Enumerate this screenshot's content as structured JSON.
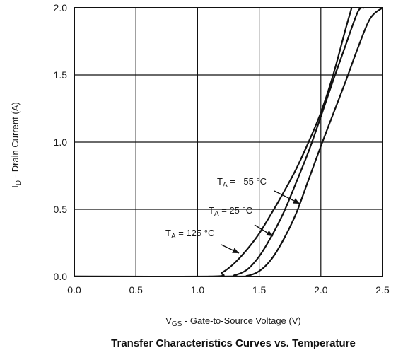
{
  "chart_data": {
    "type": "line",
    "title": "Transfer Characteristics Curves vs. Temperature",
    "xlabel": {
      "main": "V",
      "sub": "GS",
      "rest": " - Gate-to-Source Voltage (V)"
    },
    "ylabel": {
      "main": "I",
      "sub": "D",
      "rest": " - Drain Current (A)"
    },
    "xlim": [
      0.0,
      2.5
    ],
    "ylim": [
      0.0,
      2.0
    ],
    "xticks": [
      "0.0",
      "0.5",
      "1.0",
      "1.5",
      "2.0",
      "2.5"
    ],
    "yticks": [
      "0.0",
      "0.5",
      "1.0",
      "1.5",
      "2.0"
    ],
    "grid": true,
    "series": [
      {
        "name": {
          "main": "T",
          "sub": "A",
          "rest": " = - 55 °C"
        },
        "x": [
          0.0,
          1.3,
          1.4,
          1.5,
          1.6,
          1.7,
          1.8,
          1.9,
          2.0,
          2.1,
          2.2,
          2.3,
          2.4,
          2.5
        ],
        "y": [
          0.0,
          0.0,
          0.005,
          0.04,
          0.13,
          0.28,
          0.47,
          0.72,
          0.97,
          1.21,
          1.45,
          1.7,
          1.92,
          2.0
        ]
      },
      {
        "name": {
          "main": "T",
          "sub": "A",
          "rest": " = 25 °C"
        },
        "x": [
          0.0,
          1.2,
          1.3,
          1.4,
          1.5,
          1.6,
          1.7,
          1.8,
          1.9,
          2.0,
          2.1,
          2.2,
          2.3,
          2.35
        ],
        "y": [
          0.0,
          0.0,
          0.01,
          0.05,
          0.15,
          0.3,
          0.48,
          0.7,
          0.93,
          1.19,
          1.46,
          1.72,
          1.97,
          2.0
        ]
      },
      {
        "name": {
          "main": "T",
          "sub": "A",
          "rest": " = 125 °C"
        },
        "x": [
          0.0,
          1.1,
          1.2,
          1.3,
          1.4,
          1.5,
          1.6,
          1.7,
          1.8,
          1.9,
          2.0,
          2.1,
          2.2,
          2.25
        ],
        "y": [
          0.0,
          0.0,
          0.03,
          0.1,
          0.2,
          0.32,
          0.47,
          0.63,
          0.8,
          1.0,
          1.22,
          1.5,
          1.84,
          2.0
        ]
      }
    ],
    "line_color": "#111111",
    "grid_color": "#111111"
  }
}
